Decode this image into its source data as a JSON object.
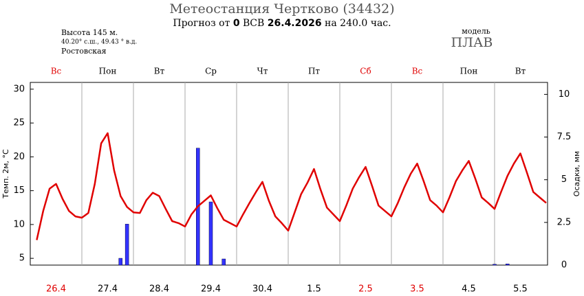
{
  "chart_data": {
    "type": "line",
    "title": "Метеостанция Чертково (34432)",
    "subtitle": {
      "p1": "Прогноз от",
      "run": "0",
      "p2": "ВСВ",
      "date": "26.4.2026",
      "p3": "на 240.0 час."
    },
    "station": {
      "height": "Высота 145 м.",
      "coords": "40.20° с.ш., 49.43 ° в.д.",
      "region": "Ростовская"
    },
    "model": {
      "label": "модель",
      "name": "ПЛАВ"
    },
    "ylabel": "Темп. 2м, °C",
    "y2label": "Осадки, мм",
    "day_names": [
      "Вс",
      "Пон",
      "Вт",
      "Ср",
      "Чт",
      "Пт",
      "Сб",
      "Вс",
      "Пон",
      "Вт"
    ],
    "dates": [
      "26.4",
      "27.4",
      "28.4",
      "29.4",
      "30.4",
      "1.5",
      "2.5",
      "3.5",
      "4.5",
      "5.5"
    ],
    "day_colors": [
      "#e00000",
      "#000000",
      "#000000",
      "#000000",
      "#000000",
      "#000000",
      "#e00000",
      "#e00000",
      "#000000",
      "#000000"
    ],
    "ylim": [
      4,
      31
    ],
    "yticks": [
      5,
      10,
      15,
      20,
      25,
      30
    ],
    "y2lim": [
      0,
      10.7
    ],
    "y2ticks": [
      0,
      2.5,
      5,
      7.5,
      10
    ],
    "temperature": {
      "color": "#e00000",
      "values": [
        7.7,
        12,
        15.3,
        16,
        13.8,
        12,
        11.2,
        11,
        11.7,
        16,
        22,
        23.5,
        18,
        14.2,
        12.6,
        11.8,
        11.7,
        13.6,
        14.7,
        14.2,
        12.3,
        10.5,
        10.2,
        9.7,
        11.5,
        12.7,
        13.5,
        14.3,
        12.4,
        10.7,
        10.2,
        9.7,
        11.5,
        13.2,
        14.8,
        16.3,
        13.5,
        11.2,
        10.2,
        9.1,
        11.8,
        14.5,
        16.2,
        18.2,
        15.2,
        12.5,
        11.5,
        10.5,
        12.8,
        15.3,
        17,
        18.5,
        15.7,
        12.8,
        12,
        11.2,
        13.2,
        15.5,
        17.5,
        19,
        16.4,
        13.6,
        12.8,
        11.8,
        14,
        16.4,
        18,
        19.4,
        16.8,
        14,
        13.2,
        12.3,
        14.8,
        17.2,
        19,
        20.5,
        17.7,
        14.8,
        14,
        13.2
      ]
    },
    "precipitation": {
      "type": "bar",
      "axis": "y2",
      "color": "#3333ff",
      "values": [
        0,
        0,
        0,
        0,
        0,
        0,
        0,
        0,
        0,
        0,
        0,
        0,
        0,
        0.4,
        2.4,
        0,
        0,
        0,
        0,
        0,
        0,
        0,
        0,
        0,
        0,
        6.85,
        0,
        3.7,
        0,
        0.36,
        0,
        0,
        0,
        0,
        0,
        0,
        0,
        0,
        0,
        0,
        0,
        0,
        0,
        0,
        0,
        0,
        0,
        0,
        0,
        0,
        0,
        0,
        0,
        0,
        0,
        0,
        0,
        0,
        0,
        0,
        0,
        0,
        0,
        0,
        0,
        0,
        0,
        0,
        0,
        0,
        0,
        0.05,
        0,
        0.07,
        0,
        0,
        0,
        0,
        0,
        0
      ]
    }
  }
}
